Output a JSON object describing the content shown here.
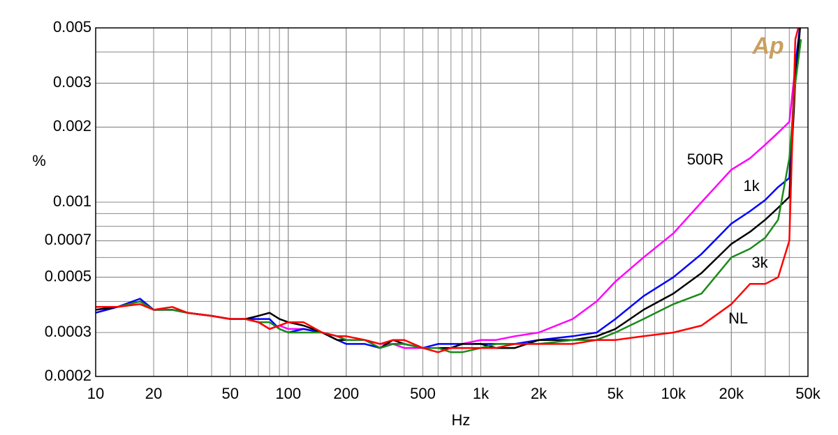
{
  "chart_data": {
    "type": "line",
    "xscale": "log",
    "yscale": "log",
    "grid": true,
    "xlabel": "Hz",
    "ylabel": "%",
    "logo": "Ap",
    "xlim": [
      10,
      50000
    ],
    "ylim": [
      0.0002,
      0.005
    ],
    "xticks": [
      10,
      20,
      50,
      100,
      200,
      500,
      {
        "value": 1000,
        "label": "1k"
      },
      {
        "value": 2000,
        "label": "2k"
      },
      {
        "value": 5000,
        "label": "5k"
      },
      {
        "value": 10000,
        "label": "10k"
      },
      {
        "value": 20000,
        "label": "20k"
      },
      {
        "value": 50000,
        "label": "50k"
      }
    ],
    "yticks": [
      0.0002,
      0.0003,
      0.0005,
      0.0007,
      0.001,
      0.002,
      0.003,
      0.005
    ],
    "x": [
      10,
      13,
      17,
      20,
      25,
      30,
      40,
      50,
      60,
      70,
      80,
      90,
      100,
      120,
      150,
      180,
      200,
      250,
      300,
      350,
      400,
      500,
      600,
      700,
      800,
      1000,
      1200,
      1500,
      2000,
      3000,
      4000,
      5000,
      7000,
      10000,
      14000,
      20000,
      25000,
      30000,
      35000,
      40000,
      43000,
      46000
    ],
    "series": [
      {
        "name": "500R",
        "color": "#ff00ff",
        "values": [
          0.00037,
          0.00038,
          0.0004,
          0.00037,
          0.00037,
          0.00036,
          0.00035,
          0.00034,
          0.00034,
          0.00033,
          0.00031,
          0.00032,
          0.00031,
          0.00031,
          0.0003,
          0.00029,
          0.00028,
          0.00028,
          0.00027,
          0.00027,
          0.00026,
          0.00026,
          0.00026,
          0.00026,
          0.00027,
          0.00028,
          0.00028,
          0.00029,
          0.0003,
          0.00034,
          0.0004,
          0.00048,
          0.0006,
          0.00075,
          0.001,
          0.00135,
          0.0015,
          0.0017,
          0.0019,
          0.0021,
          0.0035,
          0.0055
        ]
      },
      {
        "name": "1k",
        "color": "#0000ff",
        "values": [
          0.00036,
          0.00038,
          0.00041,
          0.00037,
          0.00037,
          0.00036,
          0.00035,
          0.00034,
          0.00034,
          0.00034,
          0.00034,
          0.00031,
          0.0003,
          0.00031,
          0.0003,
          0.00028,
          0.00027,
          0.00027,
          0.00026,
          0.00027,
          0.00027,
          0.00026,
          0.00027,
          0.00027,
          0.00027,
          0.00027,
          0.00027,
          0.00027,
          0.00028,
          0.00029,
          0.0003,
          0.00034,
          0.00042,
          0.0005,
          0.00062,
          0.00082,
          0.00092,
          0.00102,
          0.00115,
          0.00125,
          0.0035,
          0.0055
        ]
      },
      {
        "color": "#000000",
        "values": [
          0.00037,
          0.00038,
          0.0004,
          0.00037,
          0.00037,
          0.00036,
          0.00035,
          0.00034,
          0.00034,
          0.00035,
          0.00036,
          0.00034,
          0.00033,
          0.00032,
          0.0003,
          0.00028,
          0.00028,
          0.00028,
          0.00026,
          0.00028,
          0.00027,
          0.00026,
          0.00026,
          0.00026,
          0.00027,
          0.00027,
          0.00026,
          0.00026,
          0.00028,
          0.00028,
          0.00029,
          0.00031,
          0.00037,
          0.00043,
          0.00052,
          0.00068,
          0.00076,
          0.00085,
          0.00095,
          0.00105,
          0.003,
          0.0055
        ]
      },
      {
        "name": "3k",
        "color": "#1a8a1a",
        "values": [
          0.00038,
          0.00038,
          0.0004,
          0.00037,
          0.00037,
          0.00036,
          0.00035,
          0.00034,
          0.00034,
          0.00033,
          0.00033,
          0.00031,
          0.0003,
          0.0003,
          0.0003,
          0.00029,
          0.00028,
          0.00028,
          0.00026,
          0.00027,
          0.00027,
          0.00026,
          0.00026,
          0.00025,
          0.00025,
          0.00026,
          0.00027,
          0.00027,
          0.00027,
          0.00028,
          0.00028,
          0.0003,
          0.00034,
          0.00039,
          0.00043,
          0.0006,
          0.00065,
          0.00072,
          0.00085,
          0.0015,
          0.003,
          0.0045
        ]
      },
      {
        "name": "NL",
        "color": "#ff0000",
        "values": [
          0.00038,
          0.00038,
          0.00039,
          0.00037,
          0.00038,
          0.00036,
          0.00035,
          0.00034,
          0.00034,
          0.00033,
          0.00031,
          0.00032,
          0.00033,
          0.00033,
          0.0003,
          0.00029,
          0.00029,
          0.00028,
          0.00027,
          0.00028,
          0.00028,
          0.00026,
          0.00025,
          0.00026,
          0.00026,
          0.00026,
          0.00026,
          0.00027,
          0.00027,
          0.00027,
          0.00028,
          0.00028,
          0.00029,
          0.0003,
          0.00032,
          0.00039,
          0.00047,
          0.00047,
          0.0005,
          0.0007,
          0.0045,
          0.0055
        ]
      }
    ]
  }
}
